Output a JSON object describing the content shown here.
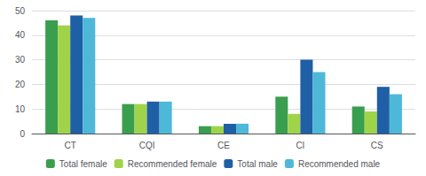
{
  "chart_data": {
    "type": "bar",
    "categories": [
      "CT",
      "CQI",
      "CE",
      "CI",
      "CS"
    ],
    "series": [
      {
        "name": "Total female",
        "color": "#3a9e4f",
        "values": [
          46,
          12,
          3,
          15,
          11
        ]
      },
      {
        "name": "Recommended female",
        "color": "#9fd44a",
        "values": [
          44,
          12,
          3,
          8,
          9
        ]
      },
      {
        "name": "Total male",
        "color": "#1f5fa6",
        "values": [
          48,
          13,
          4,
          30,
          19
        ]
      },
      {
        "name": "Recommended male",
        "color": "#4db8d8",
        "values": [
          47,
          13,
          4,
          25,
          16
        ]
      }
    ],
    "ylim": [
      0,
      50
    ],
    "yticks": [
      0,
      10,
      20,
      30,
      40,
      50
    ],
    "grid": true,
    "legend": "bottom"
  }
}
